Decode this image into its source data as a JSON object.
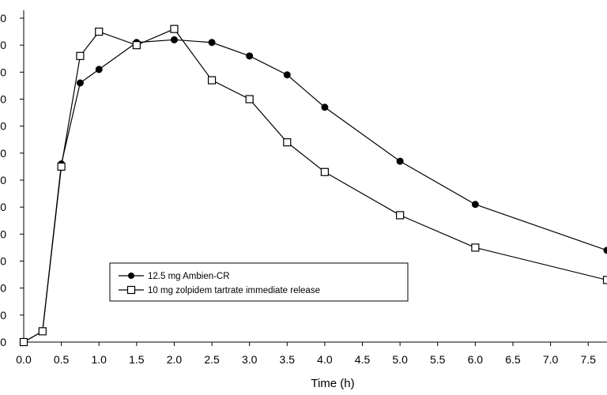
{
  "chart_data": {
    "type": "line",
    "title": "",
    "xlabel": "Time (h)",
    "ylabel": "",
    "xlim": [
      0,
      7.75
    ],
    "ylim": [
      0,
      12
    ],
    "x_ticks": [
      0.0,
      0.5,
      1.0,
      1.5,
      2.0,
      2.5,
      3.0,
      3.5,
      4.0,
      4.5,
      5.0,
      5.5,
      6.0,
      6.5,
      7.0,
      7.5
    ],
    "x_tick_labels": [
      "0.0",
      "0.5",
      "1.0",
      "1.5",
      "2.0",
      "2.5",
      "3.0",
      "3.5",
      "4.0",
      "4.5",
      "5.0",
      "5.5",
      "6.0",
      "6.5",
      "7.0",
      "7.5"
    ],
    "y_ticks": [
      0,
      1,
      2,
      3,
      4,
      5,
      6,
      7,
      8,
      9,
      10,
      11,
      12
    ],
    "y_tick_labels": [
      "0",
      "0",
      "0",
      "0",
      "0",
      "0",
      "0",
      "0",
      "0",
      "0",
      "0",
      "0",
      "0"
    ],
    "grid": false,
    "legend_position": "lower-left",
    "series": [
      {
        "name": "12.5 mg Ambien-CR",
        "marker": "filled-circle",
        "color": "#000000",
        "points": [
          [
            0,
            0
          ],
          [
            0.25,
            0.4
          ],
          [
            0.5,
            6.6
          ],
          [
            0.75,
            9.6
          ],
          [
            1.0,
            10.1
          ],
          [
            1.5,
            11.1
          ],
          [
            2.0,
            11.2
          ],
          [
            2.5,
            11.1
          ],
          [
            3.0,
            10.6
          ],
          [
            3.5,
            9.9
          ],
          [
            4.0,
            8.7
          ],
          [
            5.0,
            6.7
          ],
          [
            6.0,
            5.1
          ],
          [
            7.75,
            3.4
          ]
        ]
      },
      {
        "name": "10 mg zolpidem tartrate immediate release",
        "marker": "open-square",
        "color": "#000000",
        "points": [
          [
            0,
            0
          ],
          [
            0.25,
            0.4
          ],
          [
            0.5,
            6.5
          ],
          [
            0.75,
            10.6
          ],
          [
            1.0,
            11.5
          ],
          [
            1.5,
            11.0
          ],
          [
            2.0,
            11.6
          ],
          [
            2.5,
            9.7
          ],
          [
            3.0,
            9.0
          ],
          [
            3.5,
            7.4
          ],
          [
            4.0,
            6.3
          ],
          [
            5.0,
            4.7
          ],
          [
            6.0,
            3.5
          ],
          [
            7.75,
            2.3
          ]
        ]
      }
    ]
  }
}
